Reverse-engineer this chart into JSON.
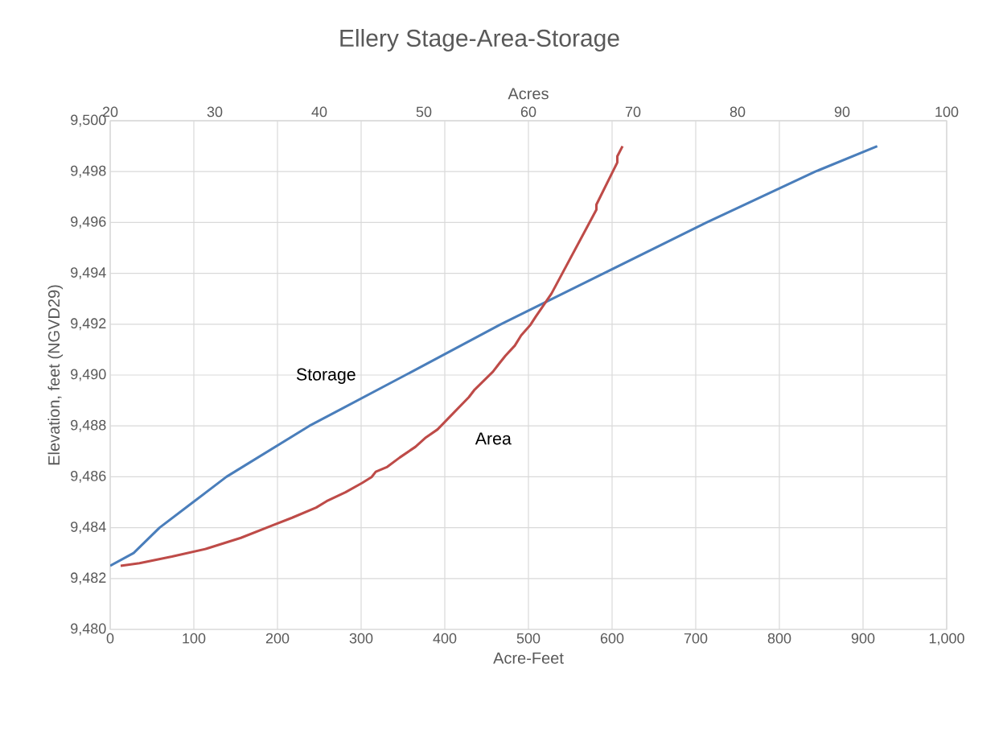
{
  "chart_data": {
    "type": "line",
    "title": "Ellery Stage-Area-Storage",
    "x2label": "Acres",
    "xlabel": "Acre-Feet",
    "ylabel": "Elevation, feet (NGVD29)",
    "xlim": [
      0,
      1000
    ],
    "xticks": [
      0,
      100,
      200,
      300,
      400,
      500,
      600,
      700,
      800,
      900,
      {
        "value": 1000,
        "label": "1,000"
      }
    ],
    "x2lim": [
      20,
      100
    ],
    "x2ticks": [
      20,
      30,
      40,
      50,
      60,
      70,
      80,
      90,
      100
    ],
    "ylim": [
      9480,
      9500
    ],
    "yticks": [
      {
        "value": 9480,
        "label": "9,480"
      },
      {
        "value": 9482,
        "label": "9,482"
      },
      {
        "value": 9484,
        "label": "9,484"
      },
      {
        "value": 9486,
        "label": "9,486"
      },
      {
        "value": 9488,
        "label": "9,488"
      },
      {
        "value": 9490,
        "label": "9,490"
      },
      {
        "value": 9492,
        "label": "9,492"
      },
      {
        "value": 9494,
        "label": "9,494"
      },
      {
        "value": 9496,
        "label": "9,496"
      },
      {
        "value": 9498,
        "label": "9,498"
      },
      {
        "value": 9500,
        "label": "9,500"
      }
    ],
    "grid": true,
    "legend": false,
    "marker": "none",
    "line_style": "solid",
    "series": [
      {
        "name": "Storage",
        "color": "#4a7ebb",
        "x": [
          0,
          28,
          59,
          99,
          139,
          238,
          353,
          467,
          590,
          713,
          843,
          917
        ],
        "values": [
          9482.5,
          9483.0,
          9484.0,
          9485.0,
          9486.0,
          9488.0,
          9490.0,
          9492.0,
          9494.0,
          9496.0,
          9498.0,
          9499.0
        ]
      },
      {
        "name": "Area",
        "color": "#be4b48",
        "axis": "x2",
        "x": [
          21.0,
          22.8,
          25.9,
          29.2,
          32.5,
          35.4,
          37.4,
          39.7,
          40.7,
          42.5,
          44.1,
          45.0,
          45.4,
          46.5,
          47.7,
          49.2,
          50.2,
          51.3,
          54.3,
          54.8,
          56.6,
          57.2,
          57.8,
          58.7,
          59.3,
          60.2,
          60.7,
          61.4,
          62.2,
          66.5,
          66.5,
          68.5,
          68.5,
          69.0
        ],
        "values": [
          9482.5,
          9482.6,
          9482.86,
          9483.17,
          9483.6,
          9484.07,
          9484.39,
          9484.79,
          9485.04,
          9485.39,
          9485.76,
          9485.99,
          9486.2,
          9486.39,
          9486.76,
          9487.18,
          9487.55,
          9487.86,
          9489.13,
          9489.4,
          9490.13,
          9490.45,
          9490.76,
          9491.16,
          9491.56,
          9491.98,
          9492.3,
          9492.72,
          9493.2,
          9496.5,
          9496.7,
          9498.36,
          9498.6,
          9499.0
        ]
      }
    ]
  }
}
